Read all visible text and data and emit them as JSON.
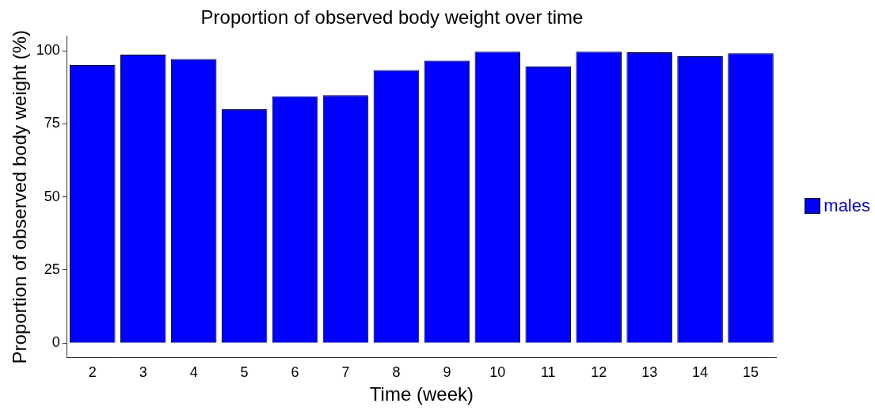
{
  "chart_data": {
    "type": "bar",
    "title": "Proportion of observed body weight over time",
    "xlabel": "Time (week)",
    "ylabel": "Proportion of observed body weight (%)",
    "categories": [
      "2",
      "3",
      "4",
      "5",
      "6",
      "7",
      "8",
      "9",
      "10",
      "11",
      "12",
      "13",
      "14",
      "15"
    ],
    "series": [
      {
        "name": "males",
        "color": "#0000ff",
        "values": [
          95.2,
          98.7,
          97.2,
          80.0,
          84.5,
          84.8,
          93.4,
          96.7,
          99.7,
          94.7,
          99.7,
          99.5,
          98.2,
          99.2
        ]
      }
    ],
    "ylim": [
      -5,
      105
    ],
    "yticks": [
      0,
      25,
      50,
      75,
      100
    ],
    "grid": false,
    "legend": "right"
  }
}
